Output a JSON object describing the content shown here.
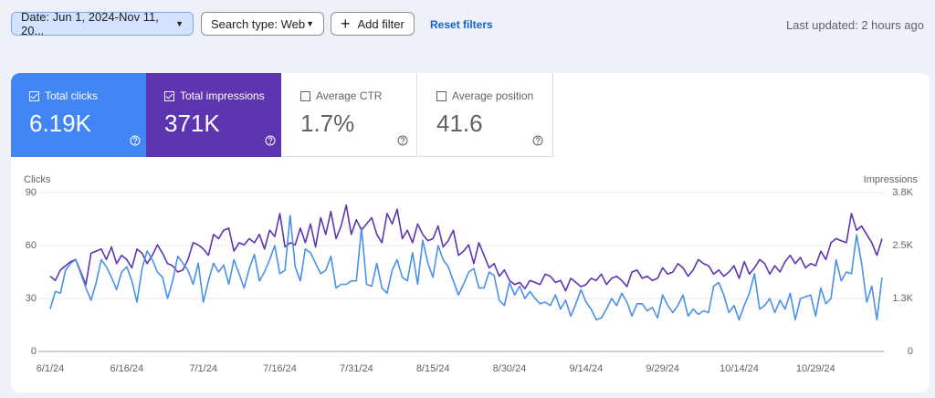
{
  "toolbar": {
    "date": "Date: Jun 1, 2024-Nov 11, 20...",
    "search_type": "Search type: Web",
    "add_filter": "Add filter",
    "reset": "Reset filters",
    "updated": "Last updated: 2 hours ago"
  },
  "metrics": [
    {
      "label": "Total clicks",
      "value": "6.19K"
    },
    {
      "label": "Total impressions",
      "value": "371K"
    },
    {
      "label": "Average CTR",
      "value": "1.7%"
    },
    {
      "label": "Average position",
      "value": "41.6"
    }
  ],
  "chart_data": {
    "type": "line",
    "ylabel": "Clicks",
    "y2label": "Impressions",
    "categories": [
      "6/1/24",
      null,
      null,
      null,
      null,
      null,
      null,
      null,
      null,
      null,
      null,
      null,
      null,
      null,
      null,
      "6/16/24",
      null,
      null,
      null,
      null,
      null,
      null,
      null,
      null,
      null,
      null,
      null,
      null,
      null,
      null,
      "7/1/24",
      null,
      null,
      null,
      null,
      null,
      null,
      null,
      null,
      null,
      null,
      null,
      null,
      null,
      null,
      "7/16/24",
      null,
      null,
      null,
      null,
      null,
      null,
      null,
      null,
      null,
      null,
      null,
      null,
      null,
      null,
      "7/31/24",
      null,
      null,
      null,
      null,
      null,
      null,
      null,
      null,
      null,
      null,
      null,
      null,
      null,
      null,
      "8/15/24",
      null,
      null,
      null,
      null,
      null,
      null,
      null,
      null,
      null,
      null,
      null,
      null,
      null,
      null,
      "8/30/24",
      null,
      null,
      null,
      null,
      null,
      null,
      null,
      null,
      null,
      null,
      null,
      null,
      null,
      null,
      "9/14/24",
      null,
      null,
      null,
      null,
      null,
      null,
      null,
      null,
      null,
      null,
      null,
      null,
      null,
      null,
      "9/29/24",
      null,
      null,
      null,
      null,
      null,
      null,
      null,
      null,
      null,
      null,
      null,
      null,
      null,
      null,
      "10/14/24",
      null,
      null,
      null,
      null,
      null,
      null,
      null,
      null,
      null,
      null,
      null,
      null,
      null,
      null,
      "10/29/24",
      null,
      null,
      null,
      null,
      null,
      null,
      null,
      null,
      null,
      null,
      null,
      null,
      null
    ],
    "series": [
      {
        "name": "Clicks",
        "color": "#4a90e8",
        "values": [
          24,
          34,
          33,
          46,
          50,
          52,
          44,
          36,
          29,
          39,
          52,
          48,
          42,
          35,
          45,
          48,
          40,
          28,
          47,
          57,
          52,
          45,
          42,
          30,
          40,
          54,
          50,
          46,
          38,
          50,
          28,
          40,
          50,
          45,
          49,
          38,
          52,
          44,
          36,
          47,
          55,
          40,
          45,
          52,
          60,
          44,
          46,
          77,
          48,
          40,
          58,
          56,
          50,
          44,
          46,
          54,
          36,
          38,
          38,
          40,
          40,
          70,
          38,
          37,
          50,
          36,
          33,
          46,
          52,
          42,
          40,
          56,
          38,
          63,
          50,
          42,
          60,
          52,
          48,
          40,
          32,
          38,
          45,
          47,
          36,
          36,
          45,
          43,
          29,
          26,
          39,
          32,
          37,
          30,
          34,
          30,
          27,
          28,
          26,
          32,
          24,
          29,
          20,
          27,
          35,
          28,
          24,
          18,
          19,
          24,
          30,
          26,
          33,
          28,
          20,
          27,
          27,
          23,
          25,
          19,
          32,
          26,
          22,
          26,
          32,
          20,
          24,
          21,
          23,
          22,
          37,
          39,
          32,
          22,
          26,
          18,
          26,
          33,
          44,
          24,
          26,
          30,
          22,
          29,
          24,
          33,
          18,
          30,
          31,
          32,
          20,
          36,
          27,
          30,
          52,
          40,
          45,
          44,
          66,
          50,
          28,
          37,
          18,
          42
        ]
      },
      {
        "name": "Impressions",
        "color": "#5e35b1",
        "axis": "y2",
        "values": [
          1800,
          1700,
          1950,
          2050,
          2150,
          2200,
          1900,
          1600,
          2350,
          2400,
          2450,
          2200,
          2500,
          2100,
          2300,
          2200,
          2000,
          2450,
          2350,
          2100,
          2300,
          2550,
          2350,
          2100,
          2050,
          1900,
          1950,
          2200,
          2600,
          2550,
          2450,
          2300,
          2800,
          2700,
          2900,
          2950,
          2400,
          2600,
          2550,
          2700,
          2600,
          2800,
          2450,
          2900,
          2750,
          3300,
          2500,
          2600,
          2550,
          2950,
          2600,
          3050,
          2500,
          3200,
          2800,
          3350,
          2700,
          3000,
          3500,
          2800,
          3150,
          2900,
          3050,
          3200,
          2800,
          2600,
          3300,
          3050,
          3400,
          2700,
          2900,
          2600,
          3050,
          2800,
          2650,
          2700,
          3000,
          2500,
          2650,
          2900,
          2300,
          2400,
          2550,
          2100,
          2600,
          2300,
          2000,
          2100,
          1800,
          1950,
          1700,
          1600,
          1650,
          1500,
          1700,
          1650,
          1600,
          1850,
          1800,
          1650,
          1700,
          1450,
          1750,
          1650,
          1550,
          1600,
          1750,
          1700,
          1850,
          1600,
          1750,
          1800,
          1700,
          1550,
          1900,
          1950,
          1750,
          1800,
          1700,
          1750,
          2000,
          1850,
          1900,
          2100,
          2000,
          1800,
          1950,
          2200,
          2100,
          2050,
          1850,
          1950,
          1800,
          1900,
          2050,
          1750,
          2150,
          1850,
          2000,
          2200,
          2100,
          1850,
          2050,
          1900,
          2150,
          2300,
          2100,
          2250,
          2000,
          2100,
          2050,
          2400,
          2200,
          2600,
          2700,
          2650,
          2600,
          3300,
          2900,
          3000,
          2800,
          2600,
          2300,
          2700
        ]
      }
    ],
    "ylim": [
      0,
      90
    ],
    "yticks": [
      0,
      30,
      60,
      90
    ],
    "y2lim": [
      0,
      3800
    ],
    "y2ticks": [
      0,
      {
        "value": 1267,
        "label": "1.3K"
      },
      {
        "value": 2533,
        "label": "2.5K"
      },
      {
        "value": 3800,
        "label": "3.8K"
      }
    ],
    "grid": true
  }
}
